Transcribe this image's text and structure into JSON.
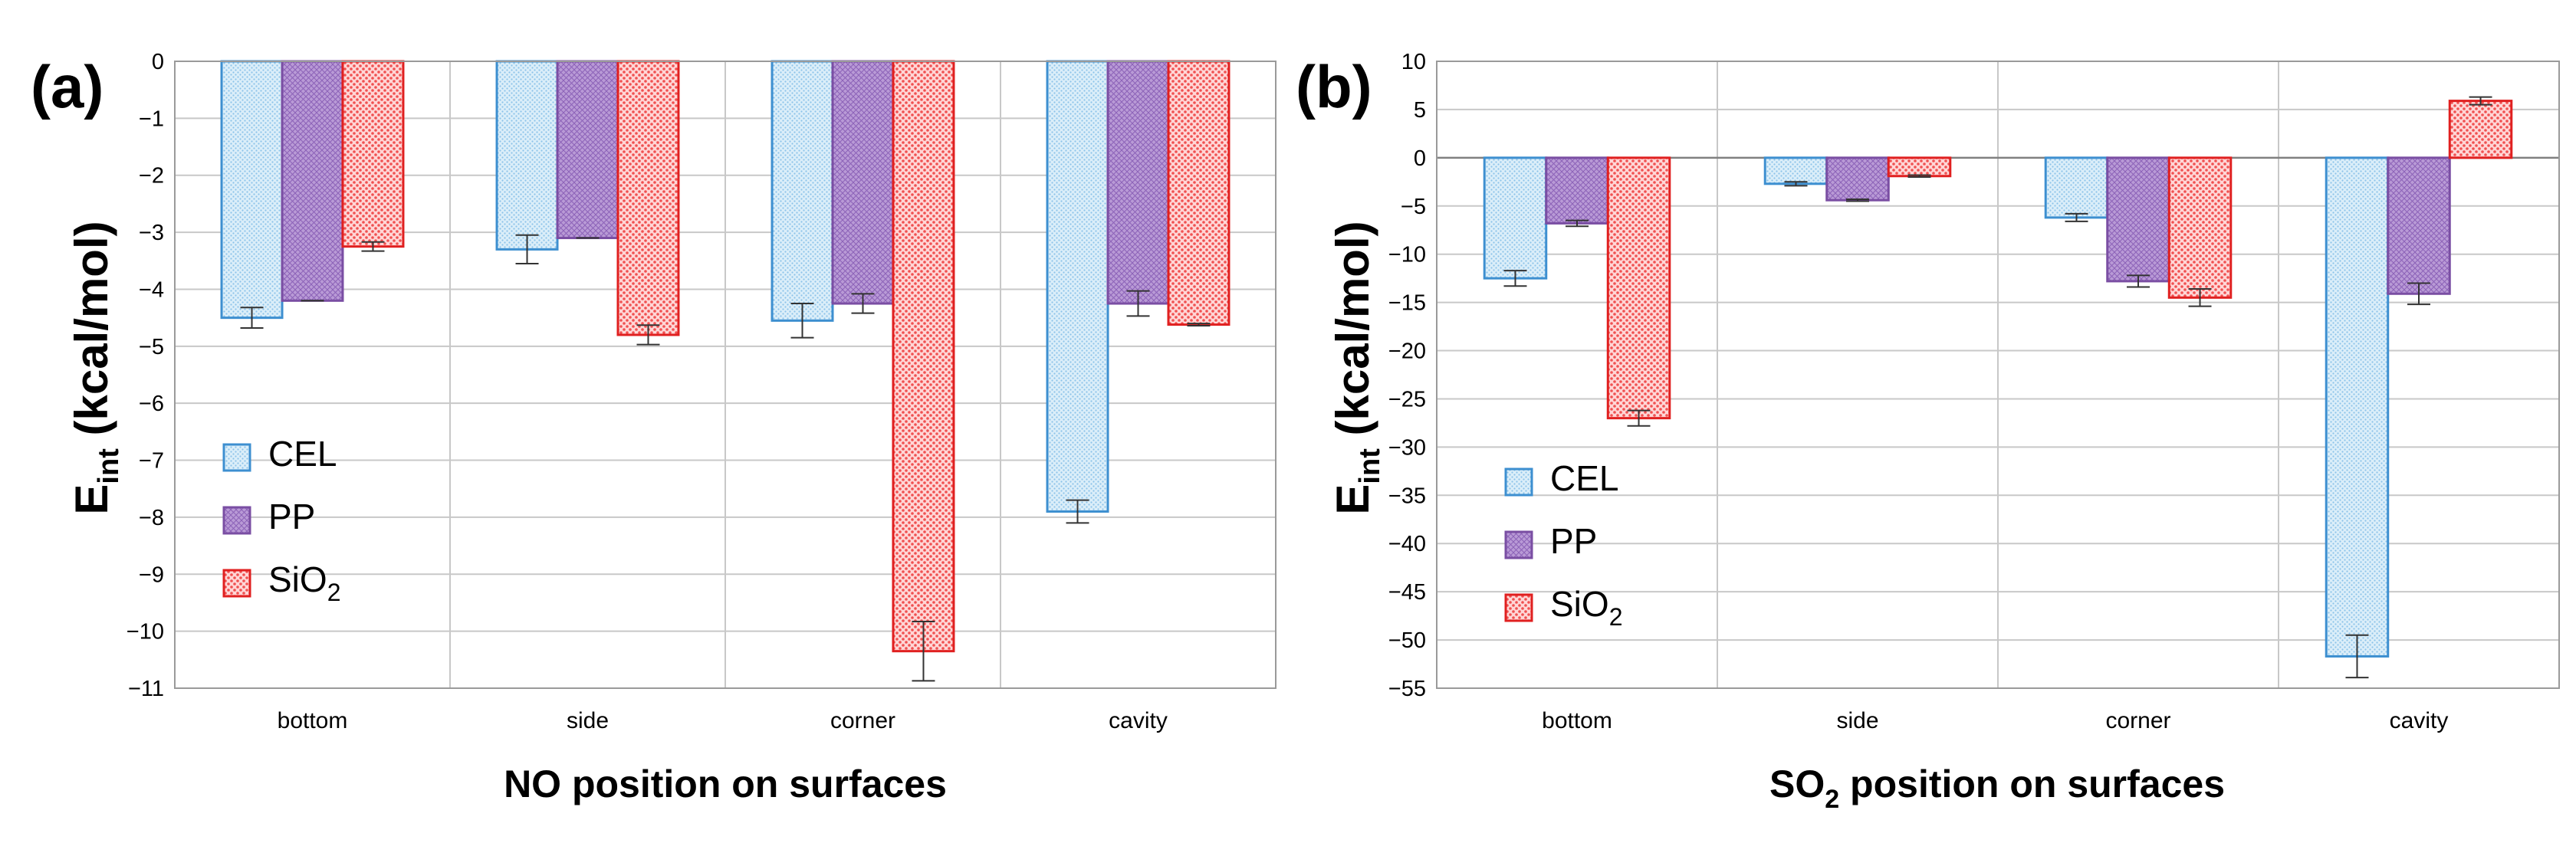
{
  "chart_data": [
    {
      "type": "bar",
      "panel_label": "(a)",
      "title": "",
      "xlabel_main": "NO position on surfaces",
      "ylabel_main": "E",
      "ylabel_sub": "int",
      "ylabel_rest": " (kcal/mol)",
      "categories": [
        "bottom",
        "side",
        "corner",
        "cavity"
      ],
      "ylim": [
        -11,
        0
      ],
      "ytick_step": 1,
      "grid": true,
      "legend_position": "bottom-left",
      "series": [
        {
          "name": "CEL",
          "name_main": "CEL",
          "name_sub": "",
          "fill": "#dbeef9",
          "stroke": "#3d8fd0",
          "pattern": "dots-fine",
          "values": [
            -4.5,
            -3.3,
            -4.55,
            -7.9
          ],
          "errors": [
            0.18,
            0.25,
            0.3,
            0.2
          ]
        },
        {
          "name": "PP",
          "name_main": "PP",
          "name_sub": "",
          "fill": "#b495d1",
          "stroke": "#7a4ea3",
          "pattern": "grid",
          "values": [
            -4.2,
            -3.1,
            -4.25,
            -4.25
          ],
          "errors": [
            0.0,
            0.0,
            0.17,
            0.22
          ]
        },
        {
          "name": "SiO2",
          "name_main": "SiO",
          "name_sub": "2",
          "fill": "#ffb3b3",
          "stroke": "#e02020",
          "pattern": "dots-coarse",
          "values": [
            -3.25,
            -4.8,
            -10.35,
            -4.62
          ],
          "errors": [
            0.08,
            0.17,
            0.52,
            0.02
          ]
        }
      ]
    },
    {
      "type": "bar",
      "panel_label": "(b)",
      "title": "",
      "xlabel_main": "SO",
      "xlabel_sub": "2",
      "xlabel_rest": " position on surfaces",
      "ylabel_main": "E",
      "ylabel_sub": "int",
      "ylabel_rest": " (kcal/mol)",
      "categories": [
        "bottom",
        "side",
        "corner",
        "cavity"
      ],
      "ylim": [
        -55,
        10
      ],
      "ytick_step": 5,
      "grid": true,
      "legend_position": "bottom-left",
      "series": [
        {
          "name": "CEL",
          "name_main": "CEL",
          "name_sub": "",
          "fill": "#dbeef9",
          "stroke": "#3d8fd0",
          "pattern": "dots-fine",
          "values": [
            -12.5,
            -2.7,
            -6.2,
            -51.7
          ],
          "errors": [
            0.8,
            0.2,
            0.4,
            2.2
          ]
        },
        {
          "name": "PP",
          "name_main": "PP",
          "name_sub": "",
          "fill": "#b495d1",
          "stroke": "#7a4ea3",
          "pattern": "grid",
          "values": [
            -6.8,
            -4.4,
            -12.8,
            -14.1
          ],
          "errors": [
            0.3,
            0.1,
            0.6,
            1.1
          ]
        },
        {
          "name": "SiO2",
          "name_main": "SiO",
          "name_sub": "2",
          "fill": "#ffb3b3",
          "stroke": "#e02020",
          "pattern": "dots-coarse",
          "values": [
            -27.0,
            -1.9,
            -14.5,
            5.9
          ],
          "errors": [
            0.8,
            0.1,
            0.9,
            0.4
          ]
        }
      ]
    }
  ]
}
